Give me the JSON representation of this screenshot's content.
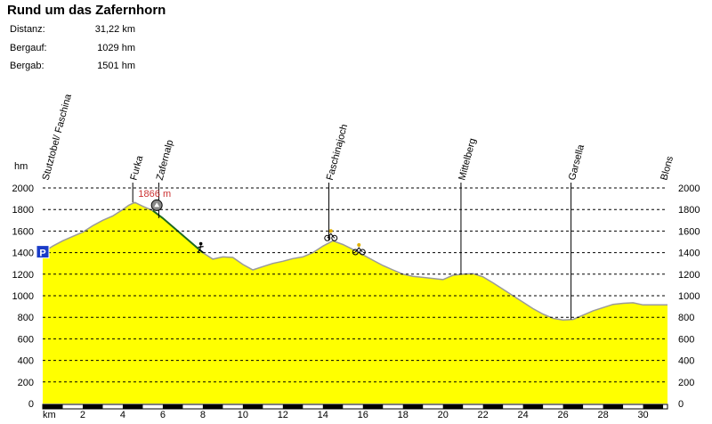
{
  "header": {
    "title": "Rund um das Zafernhorn",
    "stats": [
      {
        "label": "Distanz:",
        "value": "31,22 km"
      },
      {
        "label": "Bergauf:",
        "value": "1029 hm"
      },
      {
        "label": "Bergab:",
        "value": "1501 hm"
      }
    ]
  },
  "chart_data": {
    "type": "area",
    "title": "Rund um das Zafernhorn",
    "xlabel": "km",
    "ylabel": "hm",
    "xlim": [
      0,
      31.22
    ],
    "ylim": [
      0,
      2000
    ],
    "grid": true,
    "xticks": [
      2,
      4,
      6,
      8,
      10,
      12,
      14,
      16,
      18,
      20,
      22,
      24,
      26,
      28,
      30
    ],
    "yticks": [
      0,
      200,
      400,
      600,
      800,
      1000,
      1200,
      1400,
      1600,
      1800,
      2000
    ],
    "fill_color": "#ffff00",
    "line_color": "#9a9a9a",
    "trail_color": "#1e6a1e",
    "x": [
      0,
      0.5,
      1.0,
      1.5,
      2.0,
      2.5,
      3.0,
      3.5,
      4.0,
      4.3,
      4.6,
      5.0,
      5.5,
      6.0,
      6.5,
      7.0,
      7.5,
      8.0,
      8.5,
      9.0,
      9.5,
      10.0,
      10.5,
      11.0,
      11.5,
      12.0,
      12.5,
      13.0,
      13.5,
      14.0,
      14.5,
      15.0,
      15.5,
      16.0,
      16.5,
      17.0,
      17.5,
      18.0,
      18.5,
      19.0,
      19.5,
      20.0,
      20.5,
      21.0,
      21.5,
      22.0,
      22.5,
      23.0,
      23.5,
      24.0,
      24.5,
      25.0,
      25.5,
      26.0,
      26.5,
      27.0,
      27.5,
      28.0,
      28.5,
      29.0,
      29.5,
      30.0,
      30.5,
      31.22
    ],
    "y": [
      1400,
      1460,
      1510,
      1550,
      1590,
      1650,
      1700,
      1740,
      1800,
      1840,
      1866,
      1830,
      1790,
      1720,
      1640,
      1560,
      1480,
      1400,
      1340,
      1360,
      1355,
      1290,
      1240,
      1270,
      1300,
      1320,
      1345,
      1360,
      1400,
      1460,
      1510,
      1475,
      1430,
      1380,
      1330,
      1280,
      1240,
      1200,
      1180,
      1170,
      1160,
      1150,
      1190,
      1200,
      1205,
      1175,
      1120,
      1060,
      1000,
      940,
      880,
      830,
      790,
      775,
      780,
      820,
      860,
      890,
      920,
      930,
      935,
      915,
      915,
      915
    ],
    "trail_range": [
      5.3,
      8.4
    ],
    "peak_annotation": {
      "text": "1866 m",
      "color": "#cc3333",
      "x": 4.6
    },
    "locations": [
      {
        "name": "Stutztobel/ Faschina",
        "x": 0.1,
        "marker": false
      },
      {
        "name": "Furka",
        "x": 4.5,
        "marker": true
      },
      {
        "name": "Zafernalp",
        "x": 5.8,
        "marker": true
      },
      {
        "name": "Faschinajoch",
        "x": 14.3,
        "marker": true
      },
      {
        "name": "Mittelberg",
        "x": 20.9,
        "marker": true
      },
      {
        "name": "Garsella",
        "x": 26.4,
        "marker": true
      },
      {
        "name": "Blons",
        "x": 31.0,
        "marker": false
      }
    ],
    "icons": [
      {
        "name": "hut-icon",
        "x": 5.7
      },
      {
        "name": "hiker-icon",
        "x": 7.9
      },
      {
        "name": "bike-icon",
        "x": 14.4
      },
      {
        "name": "bike-icon",
        "x": 15.8
      }
    ],
    "parking_label": "P"
  }
}
